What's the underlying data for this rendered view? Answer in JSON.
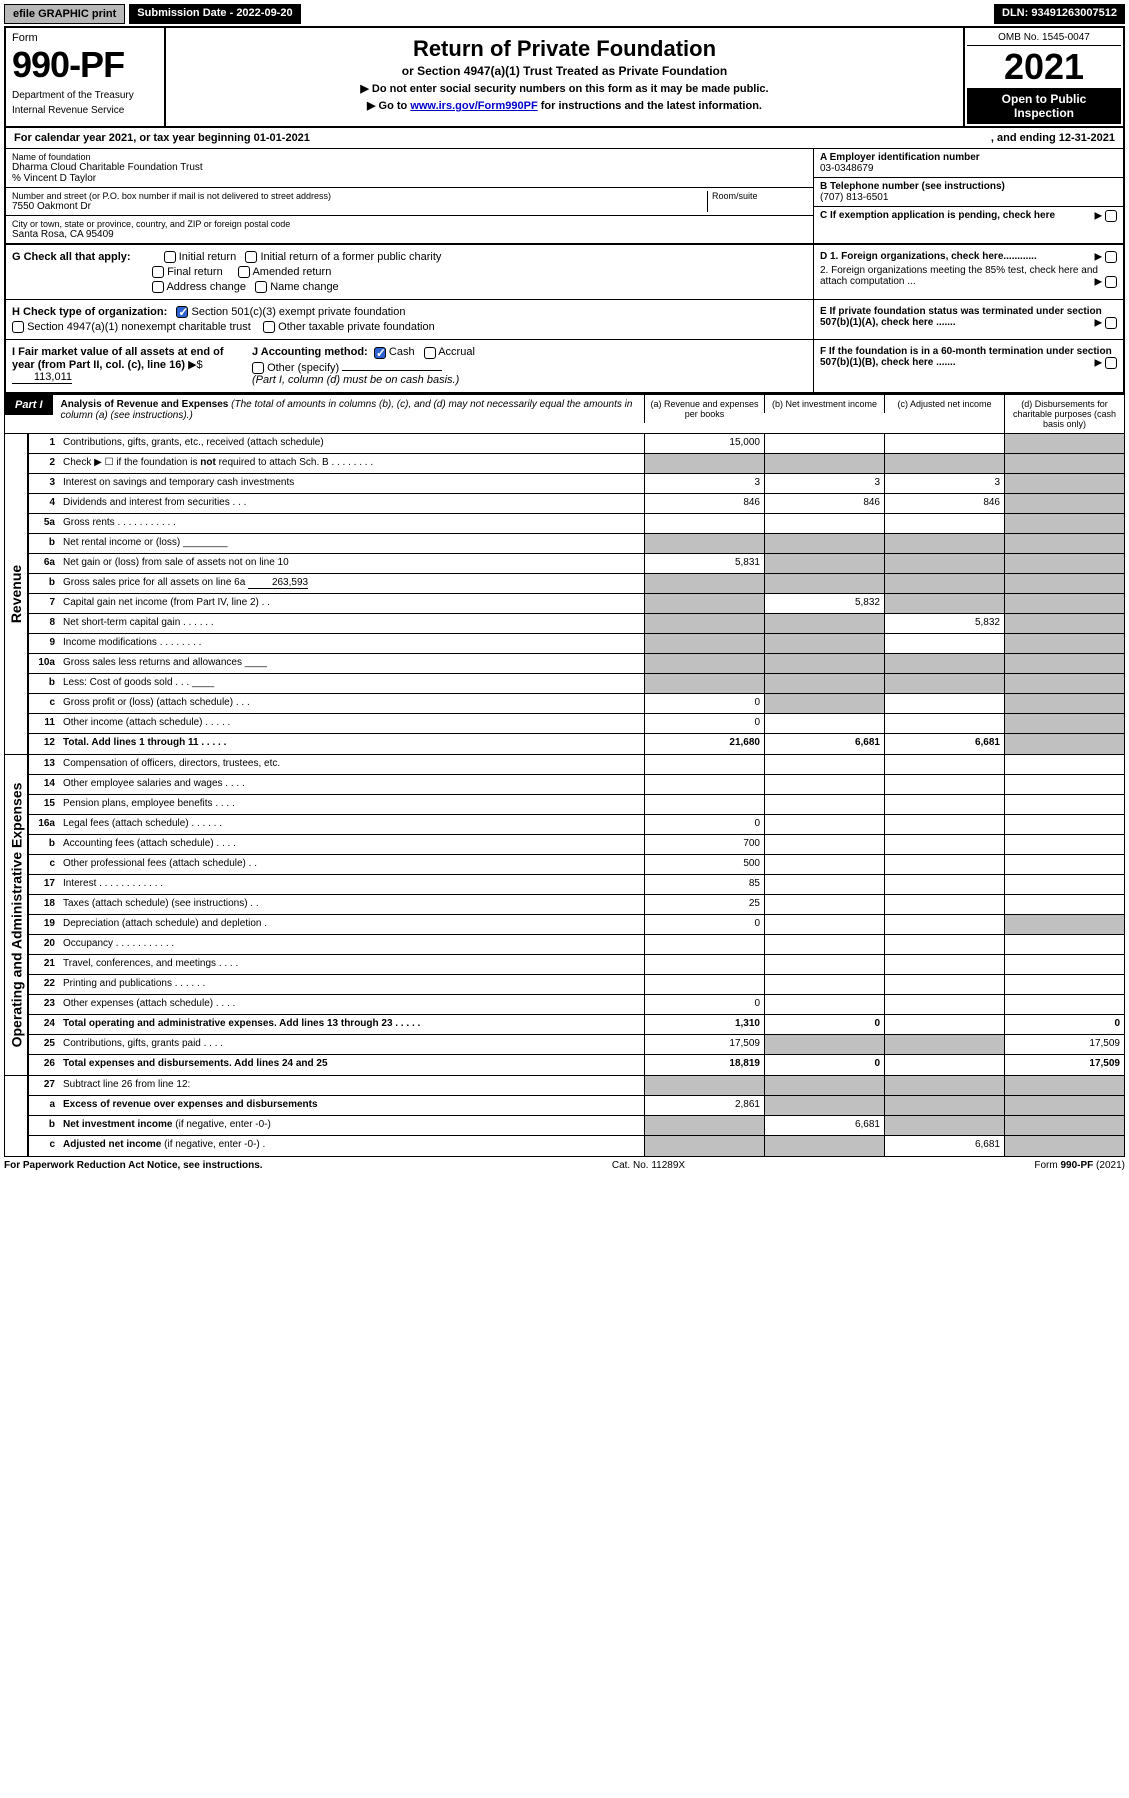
{
  "topbar": {
    "efile": "efile GRAPHIC print",
    "submission": "Submission Date - 2022-09-20",
    "dln": "DLN: 93491263007512"
  },
  "header": {
    "form_word": "Form",
    "form_number": "990-PF",
    "dept1": "Department of the Treasury",
    "dept2": "Internal Revenue Service",
    "title": "Return of Private Foundation",
    "subtitle": "or Section 4947(a)(1) Trust Treated as Private Foundation",
    "note1": "▶ Do not enter social security numbers on this form as it may be made public.",
    "note2_pre": "▶ Go to ",
    "note2_link": "www.irs.gov/Form990PF",
    "note2_post": " for instructions and the latest information.",
    "omb": "OMB No. 1545-0047",
    "year": "2021",
    "open": "Open to Public Inspection"
  },
  "calyear": {
    "text": "For calendar year 2021, or tax year beginning 01-01-2021",
    "ending": ", and ending 12-31-2021"
  },
  "entity": {
    "name_label": "Name of foundation",
    "name": "Dharma Cloud Charitable Foundation Trust",
    "care_of": "% Vincent D Taylor",
    "addr_label": "Number and street (or P.O. box number if mail is not delivered to street address)",
    "addr": "7550 Oakmont Dr",
    "room_label": "Room/suite",
    "city_label": "City or town, state or province, country, and ZIP or foreign postal code",
    "city": "Santa Rosa, CA  95409",
    "ein_label": "A Employer identification number",
    "ein": "03-0348679",
    "phone_label": "B Telephone number (see instructions)",
    "phone": "(707) 813-6501",
    "c_label": "C If exemption application is pending, check here"
  },
  "sectionG": {
    "label": "G Check all that apply:",
    "opts": [
      "Initial return",
      "Initial return of a former public charity",
      "Final return",
      "Amended return",
      "Address change",
      "Name change"
    ]
  },
  "sectionD": {
    "d1": "D 1. Foreign organizations, check here............",
    "d2": "2. Foreign organizations meeting the 85% test, check here and attach computation ...",
    "e": "E  If private foundation status was terminated under section 507(b)(1)(A), check here .......",
    "f": "F  If the foundation is in a 60-month termination under section 507(b)(1)(B), check here ......."
  },
  "sectionH": {
    "label": "H Check type of organization:",
    "opt1": "Section 501(c)(3) exempt private foundation",
    "opt2": "Section 4947(a)(1) nonexempt charitable trust",
    "opt3": "Other taxable private foundation"
  },
  "sectionI": {
    "label": "I Fair market value of all assets at end of year (from Part II, col. (c), line 16)",
    "arrow": "▶$",
    "value": "113,011"
  },
  "sectionJ": {
    "label": "J Accounting method:",
    "cash": "Cash",
    "accrual": "Accrual",
    "other": "Other (specify)",
    "note": "(Part I, column (d) must be on cash basis.)"
  },
  "part1": {
    "label": "Part I",
    "title": "Analysis of Revenue and Expenses",
    "sub": "(The total of amounts in columns (b), (c), and (d) may not necessarily equal the amounts in column (a) (see instructions).)",
    "col_a": "(a) Revenue and expenses per books",
    "col_b": "(b) Net investment income",
    "col_c": "(c) Adjusted net income",
    "col_d": "(d) Disbursements for charitable purposes (cash basis only)"
  },
  "side_labels": {
    "revenue": "Revenue",
    "expenses": "Operating and Administrative Expenses"
  },
  "rows": {
    "r1": {
      "n": "1",
      "d": "",
      "a": "15,000",
      "b": "",
      "c": "",
      "grey": [
        "b",
        "c",
        "d"
      ]
    },
    "r2": {
      "n": "2",
      "d": "",
      "a": "",
      "b": "",
      "c": "",
      "grey": [
        "a",
        "b",
        "c",
        "d"
      ]
    },
    "r3": {
      "n": "3",
      "d": "",
      "a": "3",
      "b": "3",
      "c": "3",
      "grey": [
        "d"
      ]
    },
    "r4": {
      "n": "4",
      "d": "",
      "a": "846",
      "b": "846",
      "c": "846",
      "grey": [
        "d"
      ]
    },
    "r5a": {
      "n": "5a",
      "d": "",
      "a": "",
      "b": "",
      "c": "",
      "grey": [
        "d"
      ]
    },
    "r5b": {
      "n": "b",
      "d": "",
      "a": "",
      "b": "",
      "c": "",
      "grey": [
        "a",
        "b",
        "c",
        "d"
      ]
    },
    "r6a": {
      "n": "6a",
      "d": "",
      "a": "5,831",
      "b": "",
      "c": "",
      "grey": [
        "b",
        "c",
        "d"
      ]
    },
    "r6b": {
      "n": "b",
      "d": "Gross sales price for all assets on line 6a",
      "val": "263,593",
      "grey": [
        "a",
        "b",
        "c",
        "d"
      ]
    },
    "r7": {
      "n": "7",
      "d": "",
      "a": "",
      "b": "5,832",
      "c": "",
      "grey": [
        "a",
        "c",
        "d"
      ]
    },
    "r8": {
      "n": "8",
      "d": "",
      "a": "",
      "b": "",
      "c": "5,832",
      "grey": [
        "a",
        "b",
        "d"
      ]
    },
    "r9": {
      "n": "9",
      "d": "",
      "a": "",
      "b": "",
      "c": "",
      "grey": [
        "a",
        "b",
        "d"
      ]
    },
    "r10a": {
      "n": "10a",
      "d": "Gross sales less returns and allowances",
      "grey": [
        "a",
        "b",
        "c",
        "d"
      ]
    },
    "r10b": {
      "n": "b",
      "d": "Less: Cost of goods sold",
      "grey": [
        "a",
        "b",
        "c",
        "d"
      ]
    },
    "r10c": {
      "n": "c",
      "d": "",
      "a": "0",
      "b": "",
      "c": "",
      "grey": [
        "b",
        "d"
      ]
    },
    "r11": {
      "n": "11",
      "d": "",
      "a": "0",
      "b": "",
      "c": "",
      "grey": [
        "d"
      ]
    },
    "r12": {
      "n": "12",
      "d": "",
      "a": "21,680",
      "b": "6,681",
      "c": "6,681",
      "grey": [
        "d"
      ],
      "bold": true
    },
    "r13": {
      "n": "13",
      "d": "",
      "a": "",
      "b": "",
      "c": ""
    },
    "r14": {
      "n": "14",
      "d": "",
      "a": "",
      "b": "",
      "c": ""
    },
    "r15": {
      "n": "15",
      "d": "",
      "a": "",
      "b": "",
      "c": ""
    },
    "r16a": {
      "n": "16a",
      "d": "",
      "a": "0",
      "b": "",
      "c": ""
    },
    "r16b": {
      "n": "b",
      "d": "",
      "a": "700",
      "b": "",
      "c": ""
    },
    "r16c": {
      "n": "c",
      "d": "",
      "a": "500",
      "b": "",
      "c": ""
    },
    "r17": {
      "n": "17",
      "d": "",
      "a": "85",
      "b": "",
      "c": ""
    },
    "r18": {
      "n": "18",
      "d": "",
      "a": "25",
      "b": "",
      "c": ""
    },
    "r19": {
      "n": "19",
      "d": "",
      "a": "0",
      "b": "",
      "c": "",
      "grey": [
        "d"
      ]
    },
    "r20": {
      "n": "20",
      "d": "",
      "a": "",
      "b": "",
      "c": ""
    },
    "r21": {
      "n": "21",
      "d": "",
      "a": "",
      "b": "",
      "c": ""
    },
    "r22": {
      "n": "22",
      "d": "",
      "a": "",
      "b": "",
      "c": ""
    },
    "r23": {
      "n": "23",
      "d": "",
      "a": "0",
      "b": "",
      "c": ""
    },
    "r24": {
      "n": "24",
      "d": "0",
      "a": "1,310",
      "b": "0",
      "c": "",
      "bold": true
    },
    "r25": {
      "n": "25",
      "d": "17,509",
      "a": "17,509",
      "b": "",
      "c": "",
      "grey": [
        "b",
        "c"
      ]
    },
    "r26": {
      "n": "26",
      "d": "17,509",
      "a": "18,819",
      "b": "0",
      "c": "",
      "bold": true
    },
    "r27": {
      "n": "27",
      "d": "Subtract line 26 from line 12:",
      "grey": [
        "a",
        "b",
        "c",
        "d"
      ]
    },
    "r27a": {
      "n": "a",
      "d": "",
      "a": "2,861",
      "b": "",
      "c": "",
      "grey": [
        "b",
        "c",
        "d"
      ],
      "bold": true
    },
    "r27b": {
      "n": "b",
      "d": "",
      "a": "",
      "b": "6,681",
      "c": "",
      "grey": [
        "a",
        "c",
        "d"
      ],
      "bold": true
    },
    "r27c": {
      "n": "c",
      "d": "",
      "a": "",
      "b": "",
      "c": "6,681",
      "grey": [
        "a",
        "b",
        "d"
      ],
      "bold": true
    }
  },
  "footer": {
    "left": "For Paperwork Reduction Act Notice, see instructions.",
    "mid": "Cat. No. 11289X",
    "right": "Form 990-PF (2021)"
  }
}
